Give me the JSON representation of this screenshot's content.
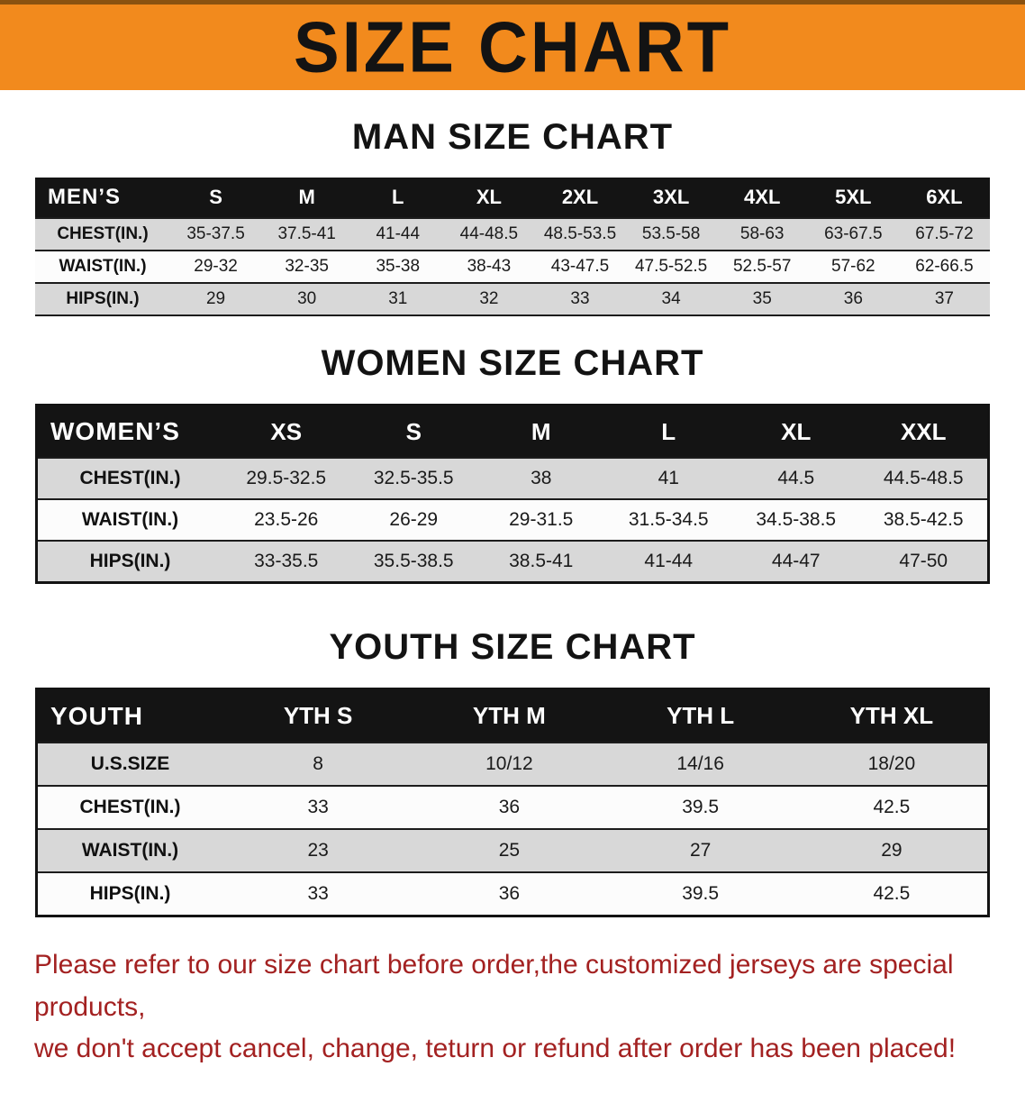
{
  "banner": {
    "title": "SIZE CHART",
    "bg_color": "#F28A1D",
    "text_color": "#131313"
  },
  "sections": {
    "men": {
      "heading": "MAN SIZE CHART"
    },
    "women": {
      "heading": "WOMEN SIZE CHART"
    },
    "youth": {
      "heading": "YOUTH SIZE CHART"
    }
  },
  "tables": {
    "men": {
      "label": "MEN’S",
      "sizes": [
        "S",
        "M",
        "L",
        "XL",
        "2XL",
        "3XL",
        "4XL",
        "5XL",
        "6XL"
      ],
      "rows": [
        {
          "label": "CHEST(IN.)",
          "values": [
            "35-37.5",
            "37.5-41",
            "41-44",
            "44-48.5",
            "48.5-53.5",
            "53.5-58",
            "58-63",
            "63-67.5",
            "67.5-72"
          ]
        },
        {
          "label": "WAIST(IN.)",
          "values": [
            "29-32",
            "32-35",
            "35-38",
            "38-43",
            "43-47.5",
            "47.5-52.5",
            "52.5-57",
            "57-62",
            "62-66.5"
          ]
        },
        {
          "label": "HIPS(IN.)",
          "values": [
            "29",
            "30",
            "31",
            "32",
            "33",
            "34",
            "35",
            "36",
            "37"
          ]
        }
      ]
    },
    "women": {
      "label": "WOMEN’S",
      "sizes": [
        "XS",
        "S",
        "M",
        "L",
        "XL",
        "XXL"
      ],
      "rows": [
        {
          "label": "CHEST(IN.)",
          "values": [
            "29.5-32.5",
            "32.5-35.5",
            "38",
            "41",
            "44.5",
            "44.5-48.5"
          ]
        },
        {
          "label": "WAIST(IN.)",
          "values": [
            "23.5-26",
            "26-29",
            "29-31.5",
            "31.5-34.5",
            "34.5-38.5",
            "38.5-42.5"
          ]
        },
        {
          "label": "HIPS(IN.)",
          "values": [
            "33-35.5",
            "35.5-38.5",
            "38.5-41",
            "41-44",
            "44-47",
            "47-50"
          ]
        }
      ]
    },
    "youth": {
      "label": "YOUTH",
      "sizes": [
        "YTH S",
        "YTH M",
        "YTH L",
        "YTH XL"
      ],
      "rows": [
        {
          "label": "U.S.SIZE",
          "values": [
            "8",
            "10/12",
            "14/16",
            "18/20"
          ]
        },
        {
          "label": "CHEST(IN.)",
          "values": [
            "33",
            "36",
            "39.5",
            "42.5"
          ]
        },
        {
          "label": "WAIST(IN.)",
          "values": [
            "23",
            "25",
            "27",
            "29"
          ]
        },
        {
          "label": "HIPS(IN.)",
          "values": [
            "33",
            "36",
            "39.5",
            "42.5"
          ]
        }
      ]
    }
  },
  "disclaimer": {
    "line1": "Please refer to our size chart before order,the customized jerseys are special products,",
    "line2": "we don't accept cancel, change, teturn or refund after order has been placed!",
    "color": "#A32121"
  }
}
